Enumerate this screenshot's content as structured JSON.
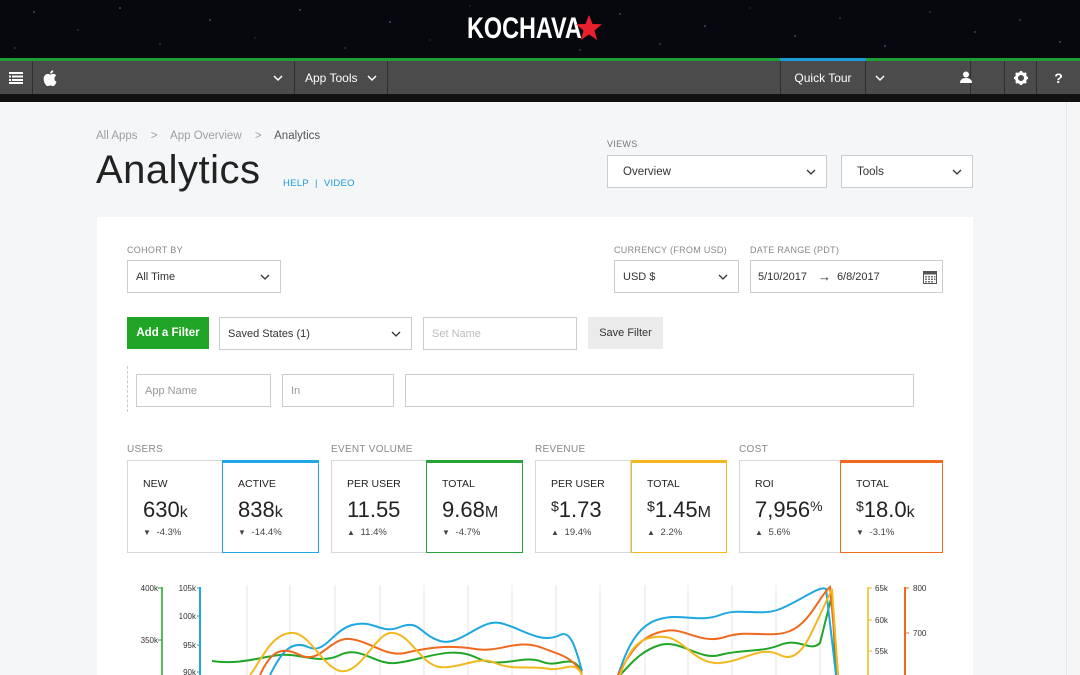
{
  "banner": {
    "brand": "KOCHAVA"
  },
  "nav": {
    "app_icon": "apple-icon",
    "app_tools": "App Tools",
    "quick_tour": "Quick Tour"
  },
  "breadcrumb": [
    "All Apps",
    ">",
    "App Overview",
    ">",
    "Analytics"
  ],
  "page": {
    "title": "Analytics",
    "help": "HELP",
    "separator": "|",
    "video": "VIDEO"
  },
  "views": {
    "label": "VIEWS",
    "selected": "Overview",
    "tools": "Tools"
  },
  "filters": {
    "cohort_label": "COHORT BY",
    "cohort_value": "All Time",
    "currency_label": "CURRENCY (FROM USD)",
    "currency_value": "USD $",
    "date_label": "DATE RANGE (PDT)",
    "date_from": "5/10/2017",
    "date_arrow": "→",
    "date_to": "6/8/2017",
    "add_filter": "Add a Filter",
    "saved_states": "Saved States (1)",
    "set_name_placeholder": "Set Name",
    "save_filter": "Save Filter",
    "app_name_placeholder": "App Name",
    "in_placeholder": "In"
  },
  "groups": {
    "users": "USERS",
    "event_volume": "EVENT VOLUME",
    "revenue": "REVENUE",
    "cost": "COST"
  },
  "metrics": [
    {
      "label": "NEW",
      "pre": "",
      "value": "630",
      "unit": "k",
      "post": "",
      "dir": "down",
      "change": "-4.3%",
      "accent": ""
    },
    {
      "label": "ACTIVE",
      "pre": "",
      "value": "838",
      "unit": "k",
      "post": "",
      "dir": "down",
      "change": "-14.4%",
      "accent": "#1ea7e0"
    },
    {
      "label": "PER USER",
      "pre": "",
      "value": "11.55",
      "unit": "",
      "post": "",
      "dir": "up",
      "change": "11.4%",
      "accent": ""
    },
    {
      "label": "TOTAL",
      "pre": "",
      "value": "9.68",
      "unit": "M",
      "post": "",
      "dir": "down",
      "change": "-4.7%",
      "accent": "#27a339"
    },
    {
      "label": "PER USER",
      "pre": "$",
      "value": "1.73",
      "unit": "",
      "post": "",
      "dir": "up",
      "change": "19.4%",
      "accent": ""
    },
    {
      "label": "TOTAL",
      "pre": "$",
      "value": "1.45",
      "unit": "M",
      "post": "",
      "dir": "up",
      "change": "2.2%",
      "accent": "#f2b81e"
    },
    {
      "label": "ROI",
      "pre": "",
      "value": "7,956",
      "unit": "",
      "post": "%",
      "dir": "up",
      "change": "5.6%",
      "accent": ""
    },
    {
      "label": "TOTAL",
      "pre": "$",
      "value": "18.0",
      "unit": "k",
      "post": "",
      "dir": "down",
      "change": "-3.1%",
      "accent": "#ef6a1e"
    }
  ],
  "chart_axes": {
    "left_outer": [
      "400k",
      "350k"
    ],
    "left_inner": [
      "105k",
      "100k",
      "95k",
      "90k"
    ],
    "right_inner": [
      "65k",
      "60k",
      "55k"
    ],
    "right_outer": [
      "800",
      "700"
    ]
  },
  "colors": {
    "green": "#20a526",
    "blue": "#1ea7e0",
    "yellow": "#f2b81e",
    "orange": "#ef6a1e",
    "red_star": "#e8202d"
  }
}
